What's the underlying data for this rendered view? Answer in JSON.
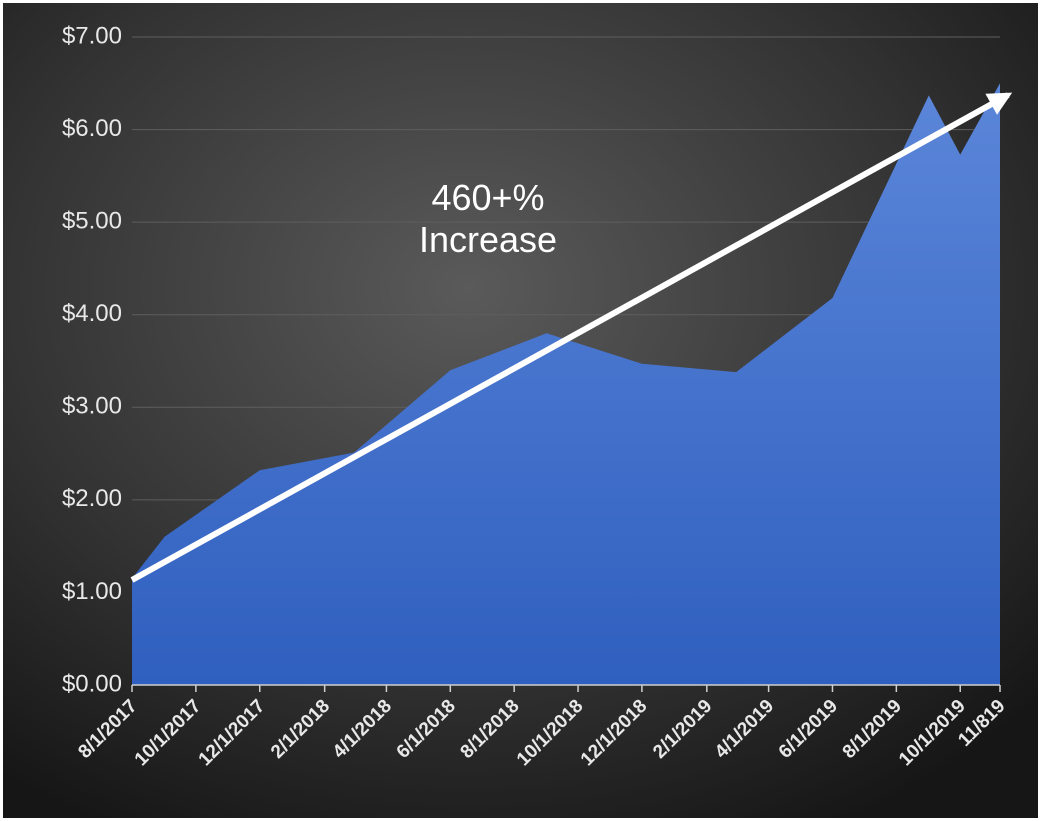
{
  "chart_data": {
    "type": "area",
    "annotations": [
      "460+%",
      "Increase"
    ],
    "x": [
      "2017-08-01",
      "2017-09-01",
      "2017-12-01",
      "2018-03-01",
      "2018-06-01",
      "2018-09-01",
      "2018-12-01",
      "2019-03-01",
      "2019-06-01",
      "2019-09-01",
      "2019-10-01",
      "2019-11-08"
    ],
    "values": [
      1.15,
      1.6,
      2.32,
      2.51,
      3.4,
      3.8,
      3.47,
      3.38,
      4.18,
      6.37,
      5.73,
      6.5
    ],
    "color": "#3d6fcf",
    "xlim": [
      "2017-08-01",
      "2019-11-08"
    ],
    "xticks": [
      {
        "value": "2017-08-01",
        "label": "8/1/2017"
      },
      {
        "value": "2017-10-01",
        "label": "10/1/2017"
      },
      {
        "value": "2017-12-01",
        "label": "12/1/2017"
      },
      {
        "value": "2018-02-01",
        "label": "2/1/2018"
      },
      {
        "value": "2018-04-01",
        "label": "4/1/2018"
      },
      {
        "value": "2018-06-01",
        "label": "6/1/2018"
      },
      {
        "value": "2018-08-01",
        "label": "8/1/2018"
      },
      {
        "value": "2018-10-01",
        "label": "10/1/2018"
      },
      {
        "value": "2018-12-01",
        "label": "12/1/2018"
      },
      {
        "value": "2019-02-01",
        "label": "2/1/2019"
      },
      {
        "value": "2019-04-01",
        "label": "4/1/2019"
      },
      {
        "value": "2019-06-01",
        "label": "6/1/2019"
      },
      {
        "value": "2019-08-01",
        "label": "8/1/2019"
      },
      {
        "value": "2019-10-01",
        "label": "10/1/2019"
      },
      {
        "value": "2019-11-08",
        "label": "11/819"
      }
    ],
    "ylim": [
      0,
      7
    ],
    "yticks": [
      {
        "value": 0,
        "label": "$0.00"
      },
      {
        "value": 1,
        "label": "$1.00"
      },
      {
        "value": 2,
        "label": "$2.00"
      },
      {
        "value": 3,
        "label": "$3.00"
      },
      {
        "value": 4,
        "label": "$4.00"
      },
      {
        "value": 5,
        "label": "$5.00"
      },
      {
        "value": 6,
        "label": "$6.00"
      },
      {
        "value": 7,
        "label": "$7.00"
      }
    ],
    "grid": true
  }
}
